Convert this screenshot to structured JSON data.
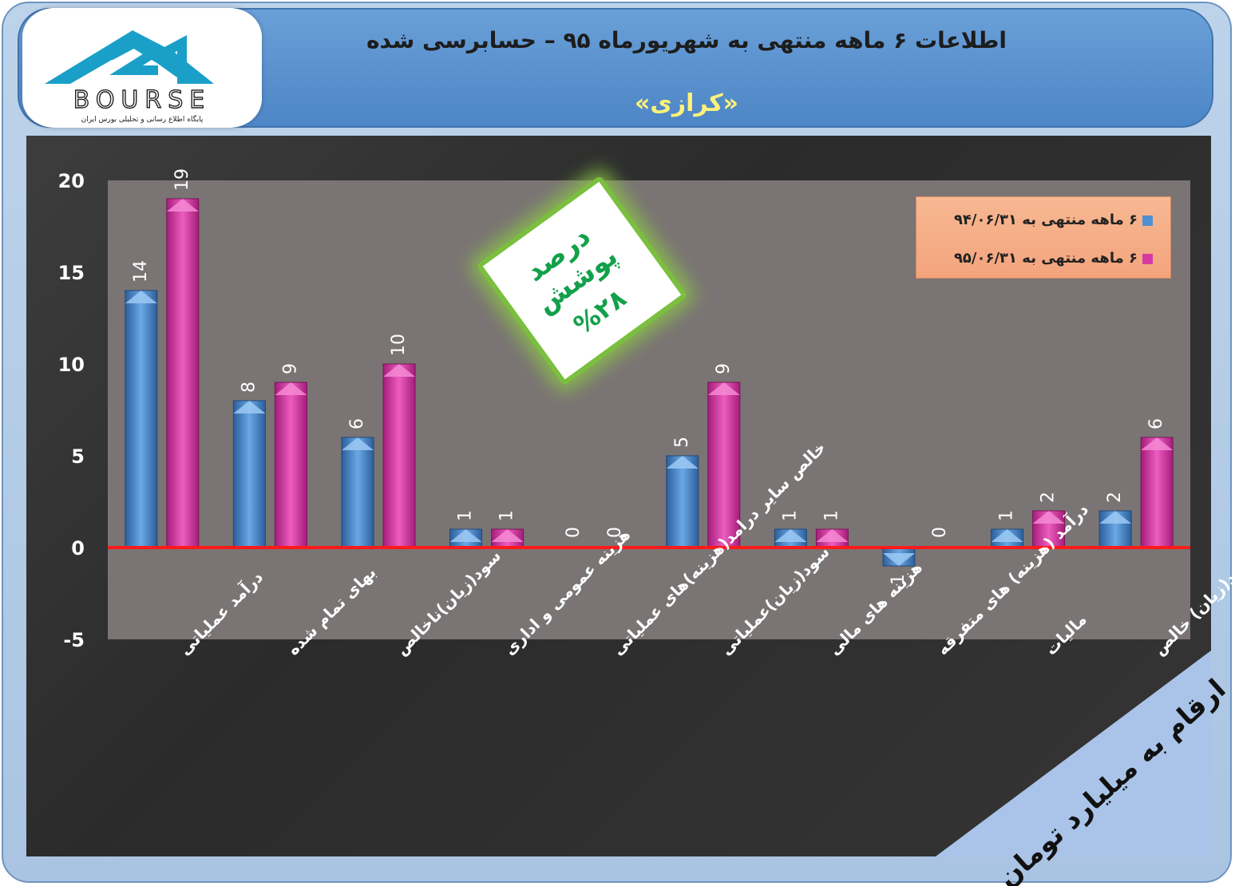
{
  "header": {
    "title": "اطلاعات ۶  ماهه منتهی به شهریورماه ۹۵ – حسابرسی شده",
    "subtitle": "«کرازی»"
  },
  "logo": {
    "brand": "BOURSE",
    "tagline": "پایگاه اطلاع رسانی و تحلیلی بورس ایران"
  },
  "badge": {
    "line1": "درصد پوشش",
    "line2": "%۲۸"
  },
  "note": "ارقام به میلیارد تومان",
  "colors": {
    "series1": "#4f8fd3",
    "series2": "#d63aa4",
    "zero_line": "#ff1a1a"
  },
  "chart_data": {
    "type": "bar",
    "categories": [
      "درآمد عملیاتی",
      "بهای تمام شده",
      "سود(زیان)ناخالص",
      "هزینه عمومی و اداری",
      "خالص سایر درامد(هزینه)های عملیاتی",
      "سود(زیان)عملیاتی",
      "هزینه های مالی",
      "درآمد (هزینه) های متفرقه",
      "مالیات",
      "سود(زیان) خالص"
    ],
    "series": [
      {
        "name": "۶ ماهه منتهی به ۹۴/۰۶/۳۱",
        "values": [
          14,
          8,
          6,
          1,
          0,
          5,
          1,
          -1,
          1,
          2
        ]
      },
      {
        "name": "۶ ماهه منتهی به ۹۵/۰۶/۳۱",
        "values": [
          19,
          9,
          10,
          1,
          0,
          9,
          1,
          0,
          2,
          6
        ]
      }
    ],
    "yticks": [
      "20",
      "15",
      "10",
      "5",
      "0",
      "-5"
    ],
    "ylim": [
      -5,
      20
    ],
    "legend_position": "top-right",
    "grid": false
  }
}
